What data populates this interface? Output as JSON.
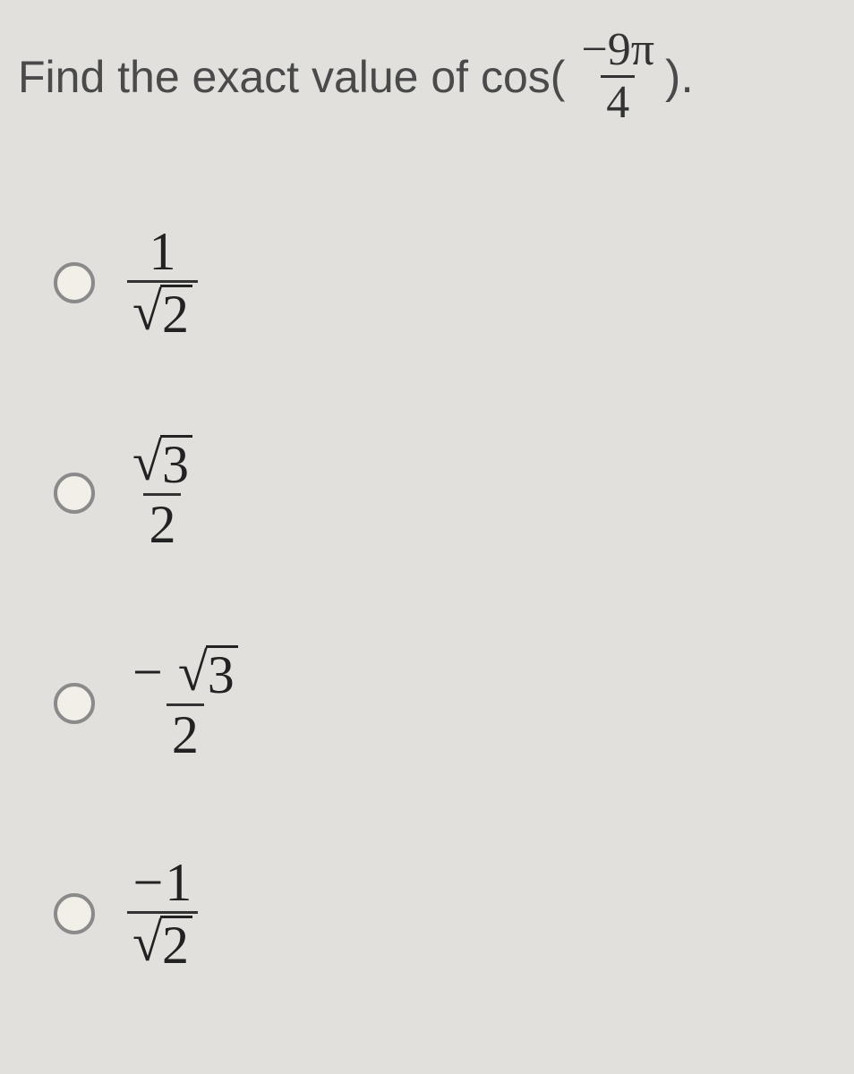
{
  "question": {
    "lead_text": "Find the exact value of cos(",
    "arg_numerator_prefix": "−",
    "arg_numerator_value": "9",
    "arg_numerator_pi": "π",
    "arg_denominator": "4",
    "close_paren": ").",
    "text_color": "#4a4a4a",
    "font_size_pt": 37
  },
  "options": [
    {
      "id": "opt-a",
      "sign": "",
      "numerator_type": "plain",
      "numerator_value": "1",
      "denominator_type": "sqrt",
      "denominator_value": "2"
    },
    {
      "id": "opt-b",
      "sign": "",
      "numerator_type": "sqrt",
      "numerator_value": "3",
      "denominator_type": "plain",
      "denominator_value": "2"
    },
    {
      "id": "opt-c",
      "sign": "−",
      "numerator_type": "sqrt",
      "numerator_value": "3",
      "denominator_type": "plain",
      "denominator_value": "2"
    },
    {
      "id": "opt-d",
      "sign": "−",
      "numerator_type": "plain",
      "numerator_value": "1",
      "denominator_type": "sqrt",
      "denominator_value": "2"
    }
  ],
  "style": {
    "background_color": "#e2e0dd",
    "radio_border_color": "#8a8a8a",
    "math_color": "#222222",
    "option_font_size_pt": 45
  }
}
